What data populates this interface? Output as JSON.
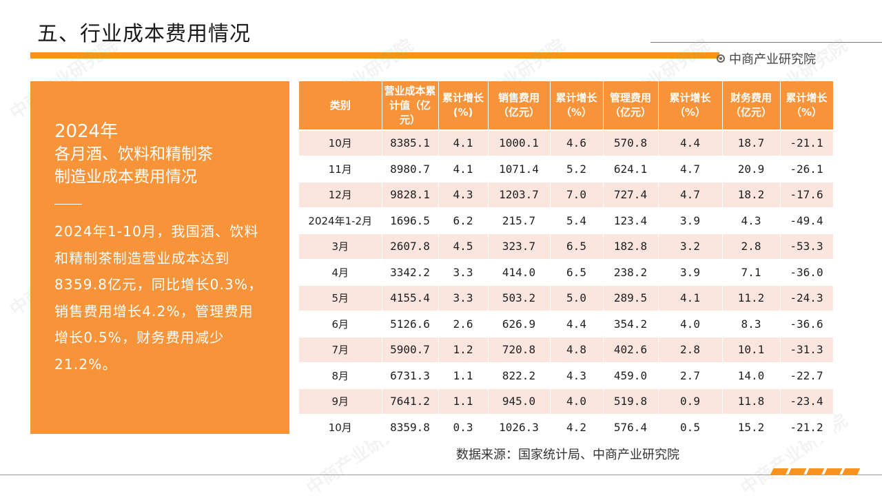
{
  "header": {
    "title": "五、行业成本费用情况",
    "brand": "中商产业研究院"
  },
  "panel": {
    "year": "2024年",
    "heading_line1": "各月酒、饮料和精制茶",
    "heading_line2": "制造业成本费用情况",
    "body_lines": [
      "2024年1-10月，我国酒、饮料",
      "和精制茶制造营业成本达到",
      "8359.8亿元，同比增长0.3%，",
      "销售费用增长4.2%，管理费用",
      "增长0.5%，财务费用减少",
      "21.2%。"
    ]
  },
  "table": {
    "headers": [
      "类别",
      "营业成本累计值（亿元）",
      "累计增长(%)",
      "销售费用（亿元）",
      "累计增长（%）",
      "管理费用（亿元）",
      "累计增长（%）",
      "财务费用（亿元）",
      "累计增长（%）"
    ],
    "rows": [
      [
        "10月",
        "8385.1",
        "4.1",
        "1000.1",
        "4.6",
        "570.8",
        "4.4",
        "18.7",
        "-21.1"
      ],
      [
        "11月",
        "8980.7",
        "4.1",
        "1071.4",
        "5.2",
        "624.1",
        "4.7",
        "20.9",
        "-26.1"
      ],
      [
        "12月",
        "9828.1",
        "4.3",
        "1203.7",
        "7.0",
        "727.4",
        "4.7",
        "18.2",
        "-17.6"
      ],
      [
        "2024年1-2月",
        "1696.5",
        "6.2",
        "215.7",
        "5.4",
        "123.4",
        "3.9",
        "4.3",
        "-49.4"
      ],
      [
        "3月",
        "2607.8",
        "4.5",
        "323.7",
        "6.5",
        "182.8",
        "3.2",
        "2.8",
        "-53.3"
      ],
      [
        "4月",
        "3342.2",
        "3.3",
        "414.0",
        "6.5",
        "238.2",
        "3.9",
        "7.1",
        "-36.0"
      ],
      [
        "5月",
        "4155.4",
        "3.3",
        "503.2",
        "5.0",
        "289.5",
        "4.1",
        "11.2",
        "-24.3"
      ],
      [
        "6月",
        "5126.6",
        "2.6",
        "626.9",
        "4.4",
        "354.2",
        "4.0",
        "8.3",
        "-36.6"
      ],
      [
        "7月",
        "5900.7",
        "1.2",
        "720.8",
        "4.8",
        "402.6",
        "2.8",
        "10.1",
        "-31.3"
      ],
      [
        "8月",
        "6731.3",
        "1.1",
        "822.2",
        "4.3",
        "459.0",
        "2.7",
        "14.0",
        "-22.7"
      ],
      [
        "9月",
        "7641.2",
        "1.1",
        "945.0",
        "4.0",
        "519.8",
        "0.9",
        "11.8",
        "-23.4"
      ],
      [
        "10月",
        "8359.8",
        "0.3",
        "1026.3",
        "4.2",
        "576.4",
        "0.5",
        "15.2",
        "-21.2"
      ]
    ]
  },
  "footer": {
    "source": "数据来源：国家统计局、中商产业研究院"
  },
  "colors": {
    "accent": "#f7943a",
    "row_tint": "#fbe5df"
  }
}
